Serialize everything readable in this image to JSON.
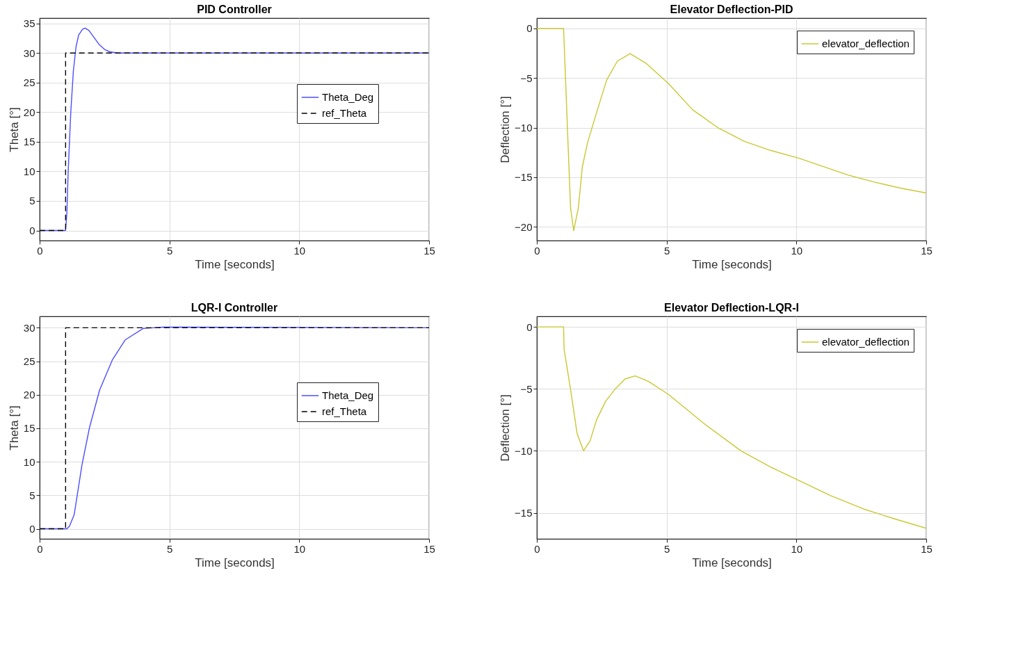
{
  "chart_data": [
    {
      "type": "line",
      "title": "PID Controller",
      "xlabel": "Time [seconds]",
      "ylabel": "Theta [°]",
      "xlim": [
        0,
        15
      ],
      "xticks": [
        0,
        5,
        10,
        15
      ],
      "ylim": [
        -1.7,
        35.9
      ],
      "yticks": [
        0,
        5,
        10,
        15,
        20,
        25,
        30,
        35
      ],
      "grid": true,
      "legend": "right",
      "series": [
        {
          "name": "Theta_Deg",
          "color": "#4d4dff",
          "line_style": "solid",
          "x": [
            0,
            1,
            1.05,
            1.1,
            1.2,
            1.3,
            1.4,
            1.5,
            1.65,
            1.75,
            1.9,
            2.1,
            2.3,
            2.5,
            2.7,
            3.0,
            15
          ],
          "values": [
            0,
            0,
            3,
            10,
            20,
            27,
            31,
            33,
            34,
            34.2,
            33.8,
            32.6,
            31.4,
            30.6,
            30.2,
            30,
            30
          ]
        },
        {
          "name": "ref_Theta",
          "color": "#000000",
          "line_style": "dashed",
          "x": [
            0,
            1,
            1,
            15
          ],
          "values": [
            0,
            0,
            30,
            30
          ]
        }
      ]
    },
    {
      "type": "line",
      "title": "Elevator Deflection-PID",
      "xlabel": "Time [seconds]",
      "ylabel": "Deflection [°]",
      "xlim": [
        0,
        15
      ],
      "xticks": [
        0,
        5,
        10,
        15
      ],
      "ylim": [
        -21.4,
        1.05
      ],
      "yticks": [
        -20,
        -15,
        -10,
        -5,
        0
      ],
      "grid": true,
      "legend": "top right",
      "series": [
        {
          "name": "elevator_deflection",
          "color": "#c8c832",
          "line_style": "solid",
          "x": [
            0,
            1.03,
            1.2,
            1.3,
            1.42,
            1.6,
            1.75,
            1.95,
            2.3,
            2.69,
            3.1,
            3.59,
            4.2,
            5.08,
            6,
            6.97,
            8,
            9,
            10.1,
            11,
            12,
            13,
            14,
            15
          ],
          "values": [
            0,
            0,
            -11.5,
            -18.1,
            -20.4,
            -18.1,
            -14,
            -11.55,
            -8.5,
            -5.2,
            -3.3,
            -2.54,
            -3.5,
            -5.58,
            -8.2,
            -10.0,
            -11.4,
            -12.3,
            -13.1,
            -13.9,
            -14.8,
            -15.5,
            -16.1,
            -16.6
          ]
        }
      ]
    },
    {
      "type": "line",
      "title": "LQR-I Controller",
      "xlabel": "Time [seconds]",
      "ylabel": "Theta [°]",
      "xlim": [
        0,
        15
      ],
      "xticks": [
        0,
        5,
        10,
        15
      ],
      "ylim": [
        -1.5,
        31.7
      ],
      "yticks": [
        0,
        5,
        10,
        15,
        20,
        25,
        30
      ],
      "grid": true,
      "legend": "right",
      "series": [
        {
          "name": "Theta_Deg",
          "color": "#4d4dff",
          "line_style": "solid",
          "x": [
            0,
            1.05,
            1.15,
            1.33,
            1.63,
            1.92,
            2.31,
            2.8,
            3.3,
            3.99,
            4.78,
            15
          ],
          "values": [
            0,
            0,
            0.4,
            2.1,
            9.5,
            15.1,
            20.7,
            25.2,
            28.2,
            29.9,
            30.1,
            30
          ]
        },
        {
          "name": "ref_Theta",
          "color": "#000000",
          "line_style": "dashed",
          "x": [
            0,
            1,
            1,
            15
          ],
          "values": [
            0,
            0,
            30,
            30
          ]
        }
      ]
    },
    {
      "type": "line",
      "title": "Elevator Deflection-LQR-I",
      "xlabel": "Time [seconds]",
      "ylabel": "Deflection [°]",
      "xlim": [
        0,
        15
      ],
      "xticks": [
        0,
        5,
        10,
        15
      ],
      "ylim": [
        -17.1,
        0.85
      ],
      "yticks": [
        -15,
        -10,
        -5,
        0
      ],
      "grid": true,
      "legend": "top right",
      "series": [
        {
          "name": "elevator_deflection",
          "color": "#c8c832",
          "line_style": "solid",
          "x": [
            0,
            1.03,
            1.05,
            1.3,
            1.55,
            1.8,
            2.05,
            2.3,
            2.65,
            3.0,
            3.4,
            3.79,
            4.3,
            5.08,
            6.5,
            7.86,
            9,
            10.1,
            11.3,
            12.6,
            13.8,
            15
          ],
          "values": [
            0,
            0,
            -1.8,
            -5.06,
            -8.6,
            -10.0,
            -9.2,
            -7.5,
            -6.0,
            -5.06,
            -4.2,
            -3.95,
            -4.4,
            -5.46,
            -7.9,
            -10.0,
            -11.3,
            -12.4,
            -13.6,
            -14.7,
            -15.5,
            -16.25
          ]
        }
      ]
    }
  ]
}
